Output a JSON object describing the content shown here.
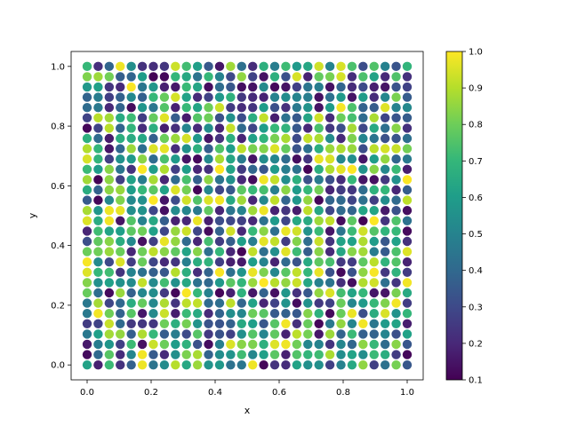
{
  "chart_data": {
    "type": "scatter",
    "title": "",
    "xlabel": "x",
    "ylabel": "y",
    "xlim": [
      -0.05,
      1.05
    ],
    "ylim": [
      -0.05,
      1.05
    ],
    "xticks": [
      "0.0",
      "0.2",
      "0.4",
      "0.6",
      "0.8",
      "1.0"
    ],
    "yticks": [
      "0.0",
      "0.2",
      "0.4",
      "0.6",
      "0.8",
      "1.0"
    ],
    "grid_points_per_axis": 30,
    "x_range": [
      0.0,
      1.0
    ],
    "y_range": [
      0.0,
      1.0
    ],
    "value_range": [
      0.1,
      1.0
    ],
    "colormap": "viridis",
    "grid": false,
    "legend": "none",
    "colorbar": {
      "ticks": [
        "0.1",
        "0.2",
        "0.3",
        "0.4",
        "0.5",
        "0.6",
        "0.7",
        "0.8",
        "0.9",
        "1.0"
      ],
      "min": 0.1,
      "max": 1.0,
      "placement": "right"
    }
  }
}
